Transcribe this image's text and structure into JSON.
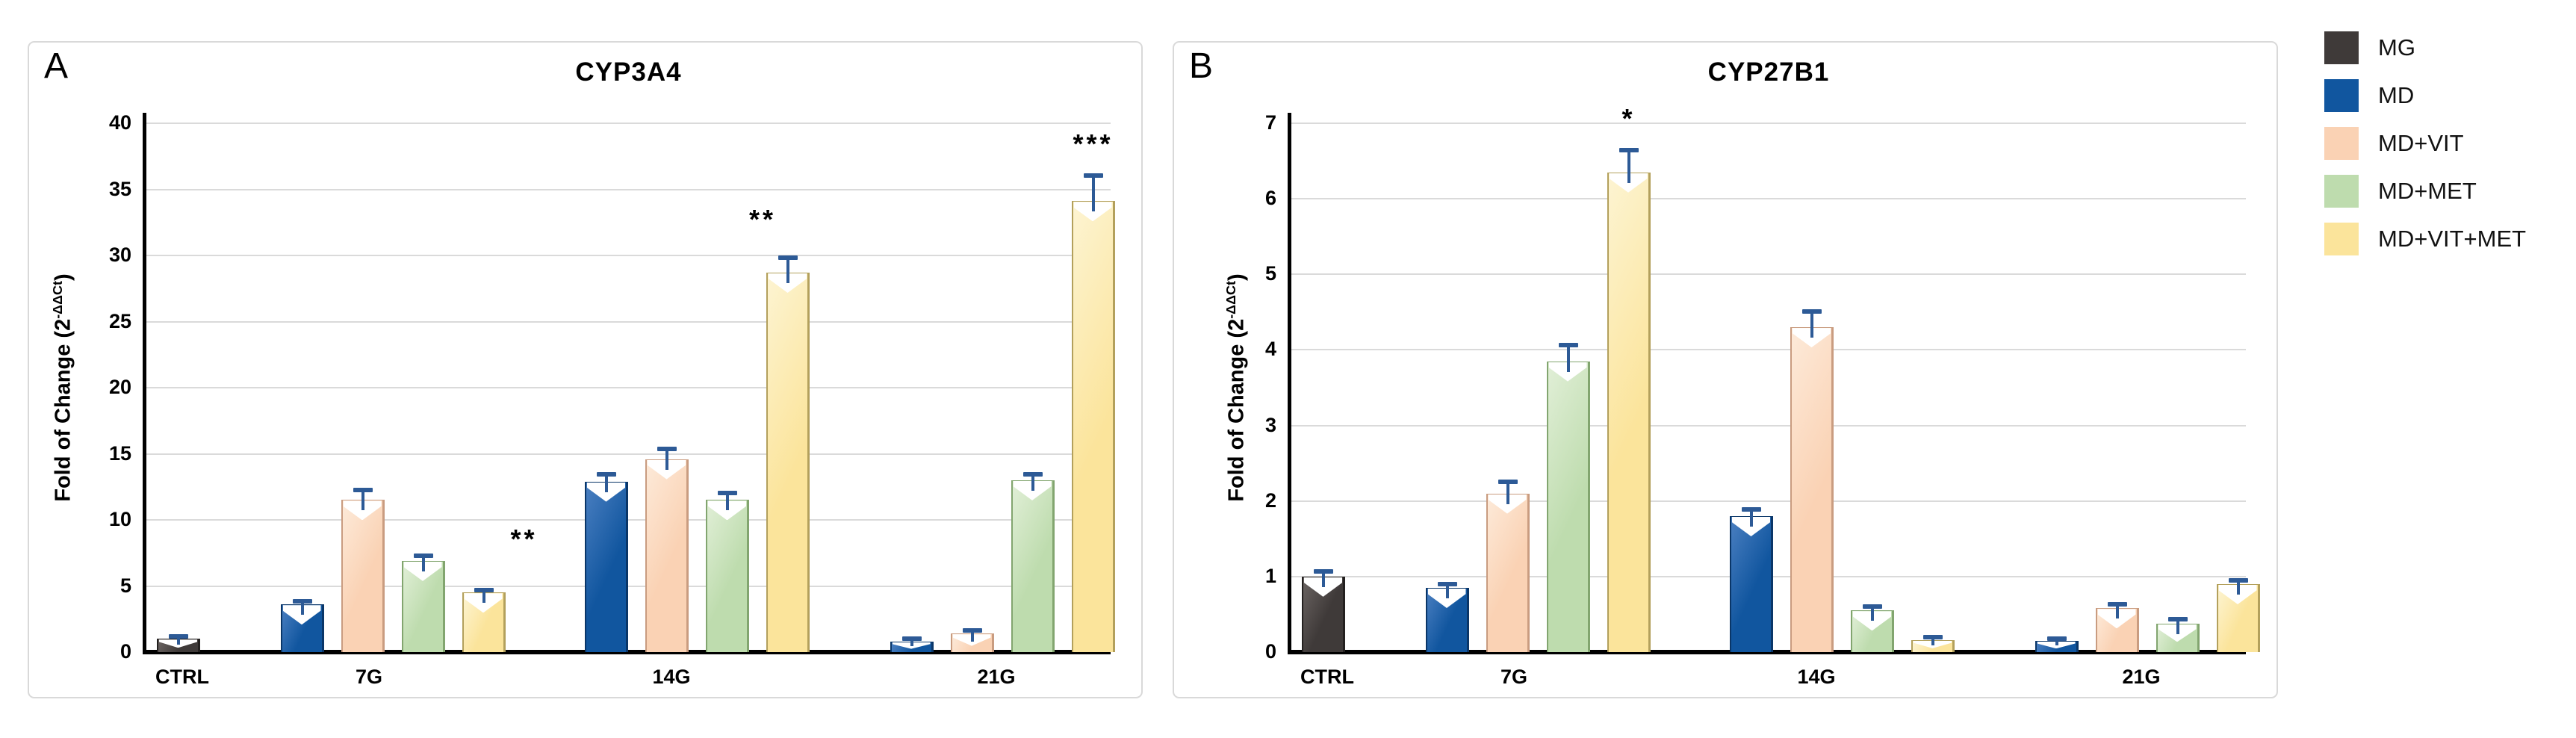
{
  "figure": {
    "background": "#ffffff",
    "panel_border_color": "#d9d9d9"
  },
  "colors": {
    "error_bar": "#2d5a96",
    "gridline": "#dadada",
    "axis": "#000000",
    "annotation": "#000000"
  },
  "legend": {
    "items": [
      {
        "label": "MG",
        "color": "#3f3a39"
      },
      {
        "label": "MD",
        "color": "#11569f"
      },
      {
        "label": "MD+VIT",
        "color": "#fad2b4"
      },
      {
        "label": "MD+MET",
        "color": "#bedcae"
      },
      {
        "label": "MD+VIT+MET",
        "color": "#fbe49b"
      }
    ]
  },
  "chart_data": [
    {
      "type": "bar",
      "panel": "A",
      "title": "CYP3A4",
      "ylabel": {
        "base": "Fold of Change (2",
        "sup": "-ΔΔCt",
        "end": ")"
      },
      "ylim": [
        0,
        40
      ],
      "ytick_step": 5,
      "grid": true,
      "legend_position": "right-outside",
      "categories": [
        "CTRL",
        "7G",
        "14G",
        "21G"
      ],
      "series": [
        {
          "name": "MG",
          "color": "#3f3a39",
          "light": "#6b6462",
          "edge": "#23201f",
          "values": [
            1.0,
            null,
            null,
            null
          ],
          "errors": [
            0.25,
            null,
            null,
            null
          ]
        },
        {
          "name": "MD",
          "color": "#11569f",
          "light": "#4a7fc1",
          "edge": "#0a3668",
          "values": [
            null,
            3.6,
            12.9,
            0.8
          ],
          "errors": [
            null,
            0.3,
            0.6,
            0.25
          ]
        },
        {
          "name": "MD+VIT",
          "color": "#fad2b4",
          "light": "#fdead9",
          "edge": "#c99c80",
          "values": [
            null,
            11.5,
            14.6,
            1.4
          ],
          "errors": [
            null,
            0.8,
            0.8,
            0.3
          ]
        },
        {
          "name": "MD+MET",
          "color": "#bedcae",
          "light": "#e1efd7",
          "edge": "#82a56f",
          "values": [
            null,
            6.9,
            11.5,
            13.0
          ],
          "errors": [
            null,
            0.45,
            0.6,
            0.5
          ]
        },
        {
          "name": "MD+VIT+MET",
          "color": "#fbe49b",
          "light": "#fdf4d2",
          "edge": "#b3a05c",
          "values": [
            null,
            4.5,
            28.7,
            34.1
          ],
          "errors": [
            null,
            0.25,
            1.2,
            2.0
          ]
        }
      ],
      "annotations": [
        {
          "text": "**",
          "category": "7G",
          "series": "MD+VIT+MET",
          "at_value": 7.6,
          "side": "right"
        },
        {
          "text": "**",
          "category": "14G",
          "series": "MD+VIT+MET",
          "at_value": 31.8,
          "side": "above-left"
        },
        {
          "text": "***",
          "category": "21G",
          "series": "MD+VIT+MET",
          "at_value": 37.5,
          "side": "above"
        }
      ]
    },
    {
      "type": "bar",
      "panel": "B",
      "title": "CYP27B1",
      "ylabel": {
        "base": "Fold of Change (2",
        "sup": "-ΔΔCt",
        "end": ")"
      },
      "ylim": [
        0,
        7
      ],
      "ytick_step": 1,
      "grid": true,
      "legend_position": "right-outside",
      "categories": [
        "CTRL",
        "7G",
        "14G",
        "21G"
      ],
      "series": [
        {
          "name": "MG",
          "color": "#3f3a39",
          "light": "#6b6462",
          "edge": "#23201f",
          "values": [
            1.0,
            null,
            null,
            null
          ],
          "errors": [
            0.08,
            null,
            null,
            null
          ]
        },
        {
          "name": "MD",
          "color": "#11569f",
          "light": "#4a7fc1",
          "edge": "#0a3668",
          "values": [
            null,
            0.85,
            1.8,
            0.15
          ],
          "errors": [
            null,
            0.06,
            0.1,
            0.04
          ]
        },
        {
          "name": "MD+VIT",
          "color": "#fad2b4",
          "light": "#fdead9",
          "edge": "#c99c80",
          "values": [
            null,
            2.1,
            4.3,
            0.58
          ],
          "errors": [
            null,
            0.16,
            0.22,
            0.06
          ]
        },
        {
          "name": "MD+MET",
          "color": "#bedcae",
          "light": "#e1efd7",
          "edge": "#82a56f",
          "values": [
            null,
            3.85,
            0.55,
            0.38
          ],
          "errors": [
            null,
            0.22,
            0.06,
            0.06
          ]
        },
        {
          "name": "MD+VIT+MET",
          "color": "#fbe49b",
          "light": "#fdf4d2",
          "edge": "#b3a05c",
          "values": [
            null,
            6.35,
            0.16,
            0.9
          ],
          "errors": [
            null,
            0.3,
            0.05,
            0.06
          ]
        }
      ],
      "annotations": [
        {
          "text": "*",
          "category": "7G",
          "series": "MD+VIT+MET",
          "at_value": 6.9,
          "side": "above"
        }
      ]
    }
  ]
}
